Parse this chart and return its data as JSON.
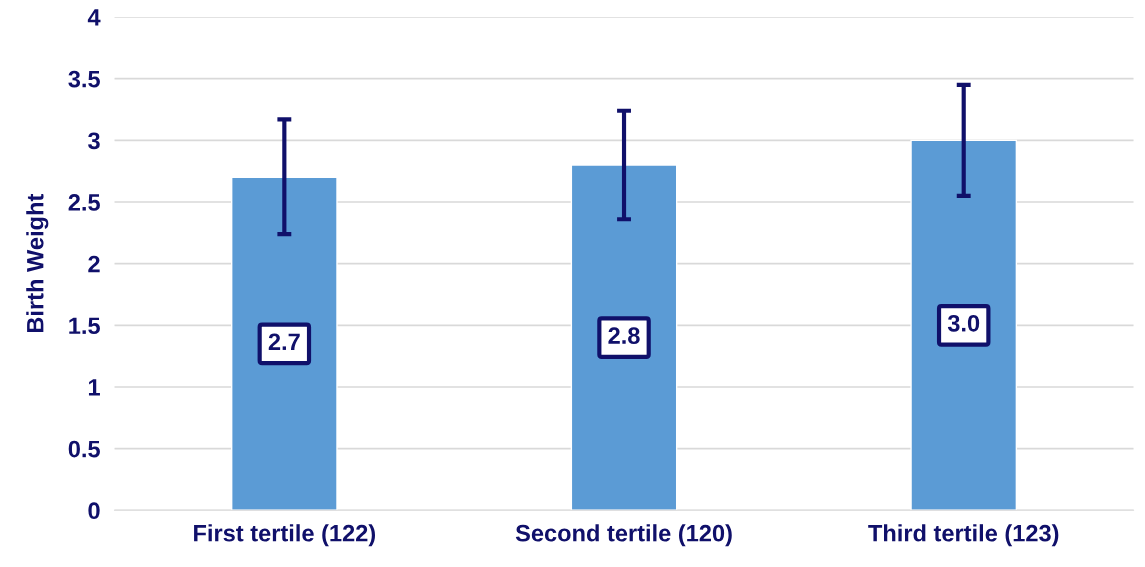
{
  "chart_data": {
    "type": "bar",
    "ylabel": "Birth Weight",
    "categories": [
      "First tertile (122)",
      "Second tertile (120)",
      "Third tertile (123)"
    ],
    "values": [
      2.7,
      2.8,
      3.0
    ],
    "errors": [
      [
        2.24,
        3.17
      ],
      [
        2.36,
        3.24
      ],
      [
        2.55,
        3.45
      ]
    ],
    "value_labels": [
      "2.7",
      "2.8",
      "3.0"
    ],
    "color": "#5b9bd5",
    "ylim": [
      0,
      4
    ],
    "yticks": [
      0,
      {
        "value": 0.5,
        "label": "0.5"
      },
      1,
      {
        "value": 1.5,
        "label": "1.5"
      },
      2,
      {
        "value": 2.5,
        "label": "2.5"
      },
      3,
      {
        "value": 3.5,
        "label": "3.5"
      },
      4
    ],
    "grid": "y"
  }
}
